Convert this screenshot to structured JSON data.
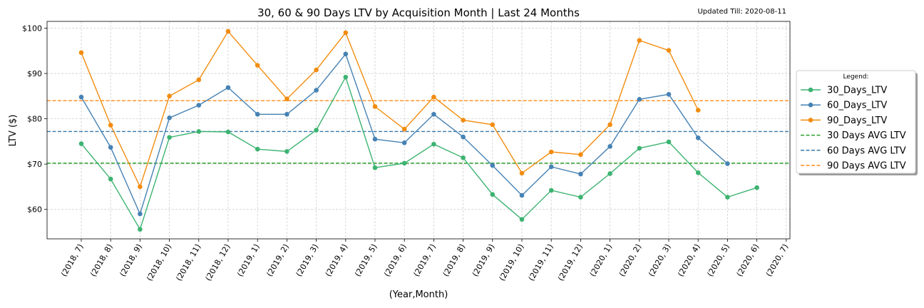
{
  "chart_data": {
    "type": "line",
    "title": "30, 60 & 90 Days LTV by Acquisition Month | Last 24 Months",
    "updated_note": "Updated Till: 2020-08-11",
    "xlabel": "(Year,Month)",
    "ylabel": "LTV ($)",
    "ylim": [
      53.5,
      101.5
    ],
    "yticks": [
      60,
      70,
      80,
      90,
      100
    ],
    "ytick_labels": [
      "$60",
      "$70",
      "$80",
      "$90",
      "$100"
    ],
    "categories": [
      "(2018, 7)",
      "(2018, 8)",
      "(2018, 9)",
      "(2018, 10)",
      "(2018, 11)",
      "(2018, 12)",
      "(2019, 1)",
      "(2019, 2)",
      "(2019, 3)",
      "(2019, 4)",
      "(2019, 5)",
      "(2019, 6)",
      "(2019, 7)",
      "(2019, 8)",
      "(2019, 9)",
      "(2019, 10)",
      "(2019, 11)",
      "(2019, 12)",
      "(2020, 1)",
      "(2020, 2)",
      "(2020, 3)",
      "(2020, 4)",
      "(2020, 5)",
      "(2020, 6)",
      "(2020, 7)"
    ],
    "series": [
      {
        "name": "30_Days_LTV",
        "color": "#3cb371",
        "values": [
          74.5,
          66.7,
          55.6,
          75.9,
          77.2,
          77.1,
          73.3,
          72.8,
          77.5,
          89.2,
          69.2,
          70.2,
          74.4,
          71.4,
          63.3,
          57.8,
          64.2,
          62.7,
          67.9,
          73.5,
          74.9,
          68.1,
          62.7,
          64.8,
          null
        ]
      },
      {
        "name": "60_Days_LTV",
        "color": "#4682b4",
        "values": [
          84.8,
          73.7,
          59.0,
          80.2,
          83.0,
          86.9,
          81.0,
          81.0,
          86.3,
          94.3,
          75.5,
          74.7,
          81.0,
          76.0,
          69.7,
          63.1,
          69.4,
          67.8,
          73.9,
          84.3,
          85.4,
          75.8,
          70.1,
          null,
          null
        ]
      },
      {
        "name": "90_Days_LTV",
        "color": "#f28c0f",
        "values": [
          94.6,
          78.6,
          65.0,
          85.0,
          88.6,
          99.3,
          91.8,
          84.4,
          90.8,
          99.0,
          82.7,
          77.7,
          84.8,
          79.7,
          78.7,
          68.0,
          72.7,
          72.1,
          78.7,
          97.3,
          95.1,
          81.9,
          null,
          null,
          null
        ]
      }
    ],
    "averages": [
      {
        "name": "30 Days AVG LTV",
        "color": "#2ca02c",
        "value": 70.2
      },
      {
        "name": "60 Days AVG LTV",
        "color": "#3a78a8",
        "value": 77.2
      },
      {
        "name": "90 Days AVG LTV",
        "color": "#ff8c1a",
        "value": 84.0
      }
    ],
    "legend": {
      "title": "Legend:",
      "placement": "right",
      "entries": [
        "30_Days_LTV",
        "60_Days_LTV",
        "90_Days_LTV",
        "30 Days AVG LTV",
        "60 Days AVG LTV",
        "90 Days AVG LTV"
      ]
    },
    "grid": true
  }
}
